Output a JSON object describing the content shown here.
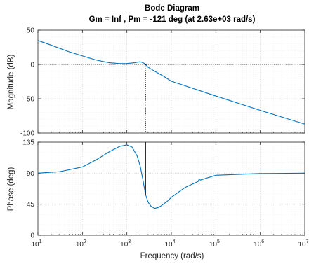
{
  "chart_data": {
    "type": "line",
    "title": "Bode Diagram",
    "subtitle": "Gm = Inf ,  Pm = -121 deg (at 2.63e+03 rad/s)",
    "xlabel": "Frequency  (rad/s)",
    "xscale": "log",
    "xlim": [
      10,
      10000000
    ],
    "x_ticks": [
      {
        "base": "10",
        "exp": "1"
      },
      {
        "base": "10",
        "exp": "2"
      },
      {
        "base": "10",
        "exp": "3"
      },
      {
        "base": "10",
        "exp": "4"
      },
      {
        "base": "10",
        "exp": "5"
      },
      {
        "base": "10",
        "exp": "6"
      },
      {
        "base": "10",
        "exp": "7"
      }
    ],
    "grid": true,
    "line_color": "#0072bd",
    "crossover_frequency": 2630,
    "phase_margin_deg": -121,
    "gain_margin": "Inf",
    "magnitude": {
      "ylabel": "Magnitude (dB)",
      "ylim": [
        -100,
        50
      ],
      "y_ticks": [
        "50",
        "0",
        "-50",
        "-100"
      ],
      "x": [
        10,
        20,
        50,
        100,
        200,
        400,
        700,
        1000,
        1500,
        2000,
        2400,
        2630,
        3000,
        4000,
        7000,
        10000,
        100000,
        1000000,
        10000000
      ],
      "y": [
        35,
        28,
        18.5,
        12.5,
        6.5,
        2.5,
        1.2,
        1.3,
        2.5,
        4,
        2,
        0,
        -4,
        -9,
        -18,
        -24.5,
        -46,
        -67,
        -87
      ]
    },
    "phase": {
      "ylabel": "Phase (deg)",
      "ylim": [
        0,
        135
      ],
      "y_ticks": [
        "135",
        "90",
        "45",
        "0"
      ],
      "x": [
        10,
        30,
        100,
        200,
        400,
        700,
        1000,
        1300,
        1700,
        2000,
        2300,
        2630,
        3000,
        3500,
        4200,
        5000,
        6000,
        8000,
        10000,
        20000,
        40000,
        42000,
        45000,
        100000,
        1000000,
        10000000
      ],
      "y": [
        90,
        92,
        99,
        109,
        121,
        129,
        131,
        128,
        115,
        100,
        80,
        59,
        48,
        42,
        39,
        40,
        43,
        49,
        55,
        69,
        78,
        81,
        80,
        87,
        89.5,
        90
      ]
    }
  }
}
